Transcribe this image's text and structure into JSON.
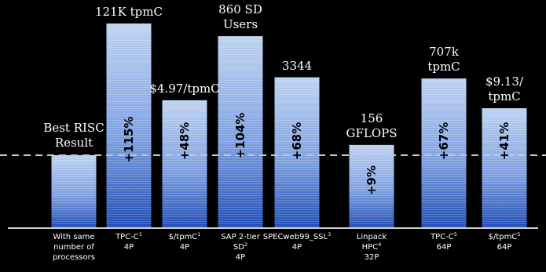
{
  "chart_data": {
    "type": "bar",
    "bars": [
      {
        "top_label": "Best RISC\nResult",
        "category_lines": [
          [
            "With same"
          ],
          [
            "number of"
          ],
          [
            "processors"
          ]
        ],
        "percent": "",
        "value": 0
      },
      {
        "top_label": "121K tpmC",
        "category_lines": [
          [
            "TPC-C",
            "1"
          ],
          [
            "4P"
          ]
        ],
        "percent": "+115%",
        "value": 115
      },
      {
        "top_label": "$4.97/tpmC",
        "category_lines": [
          [
            "$/tpmC",
            "1"
          ],
          [
            "4P"
          ]
        ],
        "percent": "+48%",
        "value": 48
      },
      {
        "top_label": "860 SD\nUsers",
        "category_lines": [
          [
            "SAP 2-tier"
          ],
          [
            "SD",
            "2"
          ],
          [
            "4P"
          ]
        ],
        "percent": "+104%",
        "value": 104
      },
      {
        "top_label": "3344",
        "category_lines": [
          [
            "SPECweb99_SSL",
            "3"
          ],
          [
            "4P"
          ]
        ],
        "percent": "+68%",
        "value": 68
      },
      {
        "top_label": "156\nGFLOPS",
        "category_lines": [
          [
            "Linpack"
          ],
          [
            "HPC",
            "4"
          ],
          [
            "32P"
          ]
        ],
        "percent": "+9%",
        "value": 9
      },
      {
        "top_label": "707k\ntpmC",
        "category_lines": [
          [
            "TPC-C",
            "5"
          ],
          [
            "64P"
          ]
        ],
        "percent": "+67%",
        "value": 67
      },
      {
        "top_label": "$9.13/\ntpmC",
        "category_lines": [
          [
            "$/tpmC",
            "5"
          ],
          [
            "64P"
          ]
        ],
        "percent": "+41%",
        "value": 41
      }
    ],
    "baseline_reference": 0,
    "reference_line": "dashed",
    "grid": false,
    "legend": "none"
  },
  "colors": {
    "background": "#000000",
    "bar_light": "#b9cff0",
    "bar_mid": "#7497dd",
    "bar_dark": "#1f4fb8",
    "dashed_line": "#c8c8c8",
    "axis": "#cfcfcf",
    "text": "#ffffff"
  }
}
